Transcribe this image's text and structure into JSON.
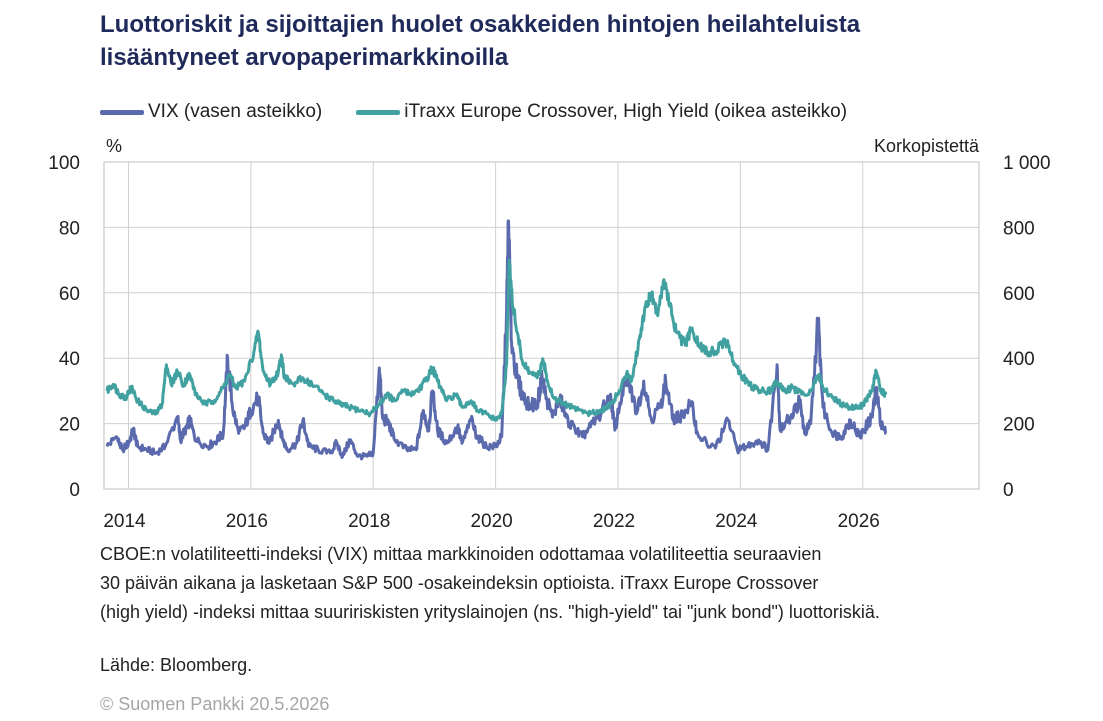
{
  "title_lines": [
    "Luottoriskit ja sijoittajien huolet osakkeiden hintojen heilahteluista",
    "lisääntyneet arvopaperimarkkinoilla"
  ],
  "notes": [
    "CBOE:n volatiliteetti-indeksi (VIX) mittaa markkinoiden odottamaa volatiliteettia seuraavien",
    "30 päivän aikana ja lasketaan S&P 500 -osakeindeksin optioista. iTraxx Europe Crossover",
    "(high yield) -indeksi mittaa suuririskisten yrityslainojen (ns. \"high-yield\" tai \"junk bond\") luottoriskiä."
  ],
  "source": "Lähde: Bloomberg.",
  "copyright": "© Suomen Pankki 20.5.2026",
  "chart_data": {
    "type": "line",
    "left_axis_unit": "%",
    "right_axis_unit": "Korkopistettä",
    "left_ylim": [
      0,
      100
    ],
    "right_ylim": [
      0,
      1000
    ],
    "left_ticks": [
      "0",
      "20",
      "40",
      "60",
      "80",
      "100"
    ],
    "right_ticks": [
      "0",
      "200",
      "400",
      "600",
      "800",
      "1 000"
    ],
    "xlim": [
      2013.6,
      2027.9
    ],
    "x_ticks": [
      2014,
      2016,
      2018,
      2020,
      2022,
      2024,
      2026
    ],
    "x_tick_labels": [
      "2014",
      "2016",
      "2018",
      "2020",
      "2022",
      "2024",
      "2026"
    ],
    "grid": true,
    "legend_position": "top-left",
    "series": [
      {
        "name": "VIX (vasen asteikko)",
        "axis": "left",
        "color": "#5b6aad",
        "points": [
          [
            2013.65,
            13
          ],
          [
            2013.8,
            16
          ],
          [
            2013.9,
            12
          ],
          [
            2014.0,
            14
          ],
          [
            2014.08,
            18
          ],
          [
            2014.15,
            13
          ],
          [
            2014.3,
            12
          ],
          [
            2014.45,
            11
          ],
          [
            2014.6,
            13
          ],
          [
            2014.8,
            22
          ],
          [
            2014.85,
            15
          ],
          [
            2014.95,
            19
          ],
          [
            2015.0,
            21
          ],
          [
            2015.1,
            15
          ],
          [
            2015.3,
            13
          ],
          [
            2015.45,
            15
          ],
          [
            2015.55,
            17
          ],
          [
            2015.62,
            40
          ],
          [
            2015.7,
            25
          ],
          [
            2015.8,
            17
          ],
          [
            2015.9,
            19
          ],
          [
            2016.0,
            24
          ],
          [
            2016.12,
            28
          ],
          [
            2016.2,
            17
          ],
          [
            2016.3,
            14
          ],
          [
            2016.45,
            21
          ],
          [
            2016.52,
            15
          ],
          [
            2016.6,
            12
          ],
          [
            2016.75,
            14
          ],
          [
            2016.85,
            21
          ],
          [
            2016.95,
            13
          ],
          [
            2017.1,
            12
          ],
          [
            2017.3,
            11
          ],
          [
            2017.4,
            14
          ],
          [
            2017.5,
            10
          ],
          [
            2017.62,
            15
          ],
          [
            2017.75,
            10
          ],
          [
            2017.9,
            10
          ],
          [
            2018.0,
            11
          ],
          [
            2018.1,
            37
          ],
          [
            2018.15,
            22
          ],
          [
            2018.25,
            20
          ],
          [
            2018.35,
            15
          ],
          [
            2018.55,
            12
          ],
          [
            2018.7,
            12
          ],
          [
            2018.82,
            24
          ],
          [
            2018.9,
            18
          ],
          [
            2018.97,
            30
          ],
          [
            2019.05,
            18
          ],
          [
            2019.2,
            14
          ],
          [
            2019.38,
            19
          ],
          [
            2019.45,
            14
          ],
          [
            2019.6,
            21
          ],
          [
            2019.7,
            16
          ],
          [
            2019.85,
            13
          ],
          [
            2020.0,
            13
          ],
          [
            2020.1,
            16
          ],
          [
            2020.18,
            55
          ],
          [
            2020.21,
            82
          ],
          [
            2020.26,
            45
          ],
          [
            2020.35,
            34
          ],
          [
            2020.45,
            28
          ],
          [
            2020.55,
            26
          ],
          [
            2020.68,
            26
          ],
          [
            2020.76,
            34
          ],
          [
            2020.83,
            28
          ],
          [
            2020.93,
            22
          ],
          [
            2021.05,
            28
          ],
          [
            2021.15,
            22
          ],
          [
            2021.3,
            18
          ],
          [
            2021.42,
            16
          ],
          [
            2021.55,
            19
          ],
          [
            2021.72,
            23
          ],
          [
            2021.88,
            29
          ],
          [
            2021.95,
            18
          ],
          [
            2022.07,
            30
          ],
          [
            2022.17,
            34
          ],
          [
            2022.3,
            23
          ],
          [
            2022.42,
            33
          ],
          [
            2022.55,
            21
          ],
          [
            2022.7,
            26
          ],
          [
            2022.78,
            33
          ],
          [
            2022.9,
            21
          ],
          [
            2023.0,
            22
          ],
          [
            2023.2,
            26
          ],
          [
            2023.3,
            17
          ],
          [
            2023.5,
            13
          ],
          [
            2023.6,
            13
          ],
          [
            2023.8,
            21
          ],
          [
            2023.95,
            12
          ],
          [
            2024.1,
            13
          ],
          [
            2024.3,
            15
          ],
          [
            2024.45,
            12
          ],
          [
            2024.6,
            38
          ],
          [
            2024.65,
            18
          ],
          [
            2024.82,
            22
          ],
          [
            2024.97,
            27
          ],
          [
            2025.05,
            17
          ],
          [
            2025.15,
            20
          ],
          [
            2025.27,
            52
          ],
          [
            2025.35,
            25
          ],
          [
            2025.5,
            17
          ],
          [
            2025.65,
            16
          ],
          [
            2025.8,
            21
          ],
          [
            2025.95,
            16
          ],
          [
            2026.05,
            19
          ],
          [
            2026.15,
            22
          ],
          [
            2026.22,
            30
          ],
          [
            2026.3,
            20
          ],
          [
            2026.38,
            17
          ]
        ]
      },
      {
        "name": "iTraxx Europe Crossover, High Yield (oikea asteikko)",
        "axis": "right",
        "color": "#41a1a1",
        "points": [
          [
            2013.65,
            300
          ],
          [
            2013.75,
            320
          ],
          [
            2013.85,
            290
          ],
          [
            2013.95,
            280
          ],
          [
            2014.05,
            310
          ],
          [
            2014.15,
            270
          ],
          [
            2014.3,
            240
          ],
          [
            2014.45,
            230
          ],
          [
            2014.55,
            260
          ],
          [
            2014.62,
            380
          ],
          [
            2014.7,
            320
          ],
          [
            2014.8,
            360
          ],
          [
            2014.9,
            320
          ],
          [
            2015.0,
            350
          ],
          [
            2015.1,
            290
          ],
          [
            2015.25,
            260
          ],
          [
            2015.4,
            270
          ],
          [
            2015.55,
            310
          ],
          [
            2015.65,
            350
          ],
          [
            2015.75,
            310
          ],
          [
            2015.9,
            330
          ],
          [
            2016.05,
            420
          ],
          [
            2016.12,
            480
          ],
          [
            2016.2,
            360
          ],
          [
            2016.32,
            320
          ],
          [
            2016.45,
            360
          ],
          [
            2016.5,
            410
          ],
          [
            2016.55,
            340
          ],
          [
            2016.7,
            320
          ],
          [
            2016.85,
            340
          ],
          [
            2017.0,
            320
          ],
          [
            2017.2,
            290
          ],
          [
            2017.35,
            270
          ],
          [
            2017.45,
            260
          ],
          [
            2017.6,
            250
          ],
          [
            2017.8,
            240
          ],
          [
            2017.95,
            230
          ],
          [
            2018.1,
            260
          ],
          [
            2018.22,
            290
          ],
          [
            2018.35,
            270
          ],
          [
            2018.5,
            300
          ],
          [
            2018.6,
            290
          ],
          [
            2018.72,
            300
          ],
          [
            2018.85,
            330
          ],
          [
            2018.97,
            370
          ],
          [
            2019.05,
            330
          ],
          [
            2019.2,
            270
          ],
          [
            2019.35,
            290
          ],
          [
            2019.45,
            250
          ],
          [
            2019.6,
            270
          ],
          [
            2019.7,
            240
          ],
          [
            2019.85,
            230
          ],
          [
            2020.0,
            210
          ],
          [
            2020.1,
            230
          ],
          [
            2020.18,
            380
          ],
          [
            2020.22,
            700
          ],
          [
            2020.27,
            580
          ],
          [
            2020.35,
            480
          ],
          [
            2020.45,
            380
          ],
          [
            2020.55,
            360
          ],
          [
            2020.68,
            340
          ],
          [
            2020.78,
            390
          ],
          [
            2020.85,
            330
          ],
          [
            2020.95,
            280
          ],
          [
            2021.1,
            260
          ],
          [
            2021.25,
            250
          ],
          [
            2021.4,
            240
          ],
          [
            2021.55,
            230
          ],
          [
            2021.7,
            240
          ],
          [
            2021.82,
            250
          ],
          [
            2021.92,
            270
          ],
          [
            2022.03,
            300
          ],
          [
            2022.15,
            360
          ],
          [
            2022.22,
            330
          ],
          [
            2022.35,
            460
          ],
          [
            2022.45,
            560
          ],
          [
            2022.55,
            600
          ],
          [
            2022.65,
            530
          ],
          [
            2022.75,
            640
          ],
          [
            2022.85,
            560
          ],
          [
            2022.95,
            480
          ],
          [
            2023.1,
            440
          ],
          [
            2023.2,
            490
          ],
          [
            2023.32,
            440
          ],
          [
            2023.45,
            420
          ],
          [
            2023.6,
            420
          ],
          [
            2023.72,
            450
          ],
          [
            2023.8,
            440
          ],
          [
            2023.92,
            380
          ],
          [
            2024.05,
            340
          ],
          [
            2024.2,
            310
          ],
          [
            2024.35,
            300
          ],
          [
            2024.5,
            300
          ],
          [
            2024.6,
            330
          ],
          [
            2024.7,
            300
          ],
          [
            2024.85,
            310
          ],
          [
            2025.0,
            290
          ],
          [
            2025.15,
            300
          ],
          [
            2025.28,
            350
          ],
          [
            2025.35,
            310
          ],
          [
            2025.5,
            280
          ],
          [
            2025.65,
            260
          ],
          [
            2025.8,
            250
          ],
          [
            2025.95,
            250
          ],
          [
            2026.05,
            270
          ],
          [
            2026.15,
            300
          ],
          [
            2026.22,
            360
          ],
          [
            2026.3,
            300
          ],
          [
            2026.38,
            290
          ]
        ]
      }
    ]
  }
}
